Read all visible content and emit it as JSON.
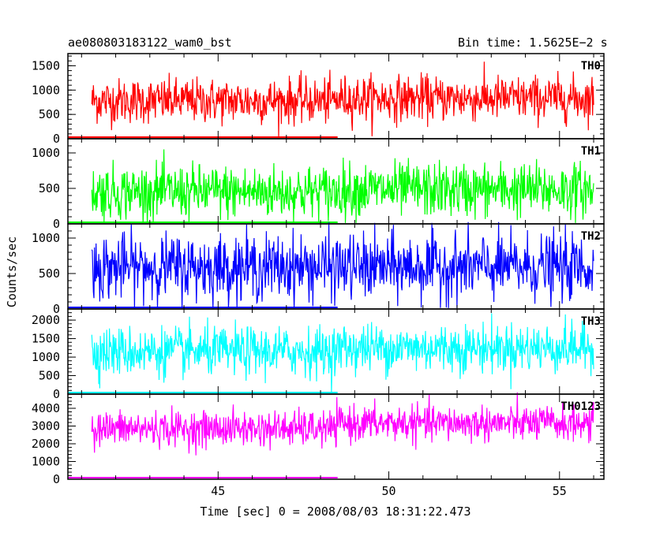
{
  "header": {
    "title": "ae080803183122_wam0_bst",
    "bin_time": "Bin time: 1.5625E−2 s"
  },
  "axes": {
    "xlabel": "Time [sec] 0 = 2008/08/03 18:31:22.473",
    "ylabel": "Counts/sec"
  },
  "chart_data": [
    {
      "type": "line",
      "name": "TH0",
      "color": "#ff0000",
      "x_range": [
        40.6,
        56.3
      ],
      "ylim": [
        0,
        1750
      ],
      "yticks": [
        0,
        500,
        1000,
        1500
      ],
      "mean_first_half": 780,
      "mean_second_half": 830,
      "noise": 230,
      "data_x": [
        41.3,
        56.0
      ],
      "gap_from": 48.5
    },
    {
      "type": "line",
      "name": "TH1",
      "color": "#00ff00",
      "x_range": [
        40.6,
        56.3
      ],
      "ylim": [
        0,
        1200
      ],
      "yticks": [
        0,
        500,
        1000
      ],
      "mean_first_half": 450,
      "mean_second_half": 480,
      "noise": 190,
      "data_x": [
        41.3,
        56.0
      ],
      "gap_from": 48.5
    },
    {
      "type": "line",
      "name": "TH2",
      "color": "#0000ff",
      "x_range": [
        40.6,
        56.3
      ],
      "ylim": [
        0,
        1200
      ],
      "yticks": [
        0,
        500,
        1000
      ],
      "mean_first_half": 590,
      "mean_second_half": 590,
      "noise": 230,
      "data_x": [
        41.3,
        56.0
      ],
      "gap_from": 48.5
    },
    {
      "type": "line",
      "name": "TH3",
      "color": "#00ffff",
      "x_range": [
        40.6,
        56.3
      ],
      "ylim": [
        0,
        2300
      ],
      "yticks": [
        0,
        500,
        1000,
        1500,
        2000
      ],
      "mean_first_half": 1150,
      "mean_second_half": 1250,
      "noise": 330,
      "data_x": [
        41.3,
        56.0
      ],
      "gap_from": 48.5
    },
    {
      "type": "line",
      "name": "TH0123",
      "color": "#ff00ff",
      "x_range": [
        40.6,
        56.3
      ],
      "ylim": [
        0,
        4800
      ],
      "yticks": [
        0,
        1000,
        2000,
        3000,
        4000
      ],
      "mean_first_half": 2850,
      "mean_second_half": 3150,
      "noise": 500,
      "data_x": [
        41.3,
        56.0
      ],
      "gap_from": 48.5
    }
  ],
  "x_ticks_major": [
    45,
    50,
    55
  ]
}
